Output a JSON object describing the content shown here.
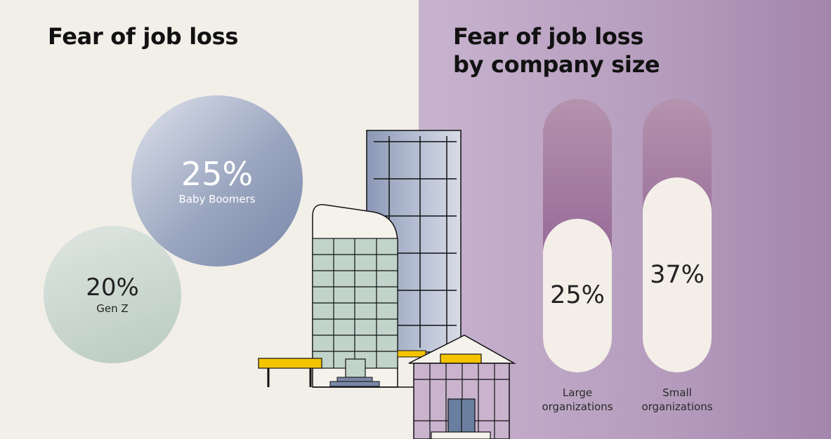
{
  "left_panel": {
    "title": "Fear of job loss",
    "circles": [
      {
        "value_text": "25%",
        "label": "Baby Boomers"
      },
      {
        "value_text": "20%",
        "label": "Gen Z"
      }
    ]
  },
  "right_panel": {
    "title_line1": "Fear of job loss",
    "title_line2": "by company size",
    "bars": [
      {
        "value_text": "25%",
        "label": "Large\norganizations"
      },
      {
        "value_text": "37%",
        "label": "Small\norganizations"
      }
    ]
  },
  "colors": {
    "left_background": "#f2efe9",
    "right_background": "#b59cbd",
    "bar_gradient_top": "#b593ad",
    "bar_gradient_bottom": "#87568f",
    "accent_yellow": "#f5c400"
  },
  "chart_data": [
    {
      "type": "bubble",
      "title": "Fear of job loss",
      "categories": [
        "Baby Boomers",
        "Gen Z"
      ],
      "values": [
        25,
        20
      ],
      "unit": "%"
    },
    {
      "type": "bar",
      "title": "Fear of job loss by company size",
      "categories": [
        "Large organizations",
        "Small organizations"
      ],
      "values": [
        25,
        37
      ],
      "unit": "%"
    }
  ]
}
